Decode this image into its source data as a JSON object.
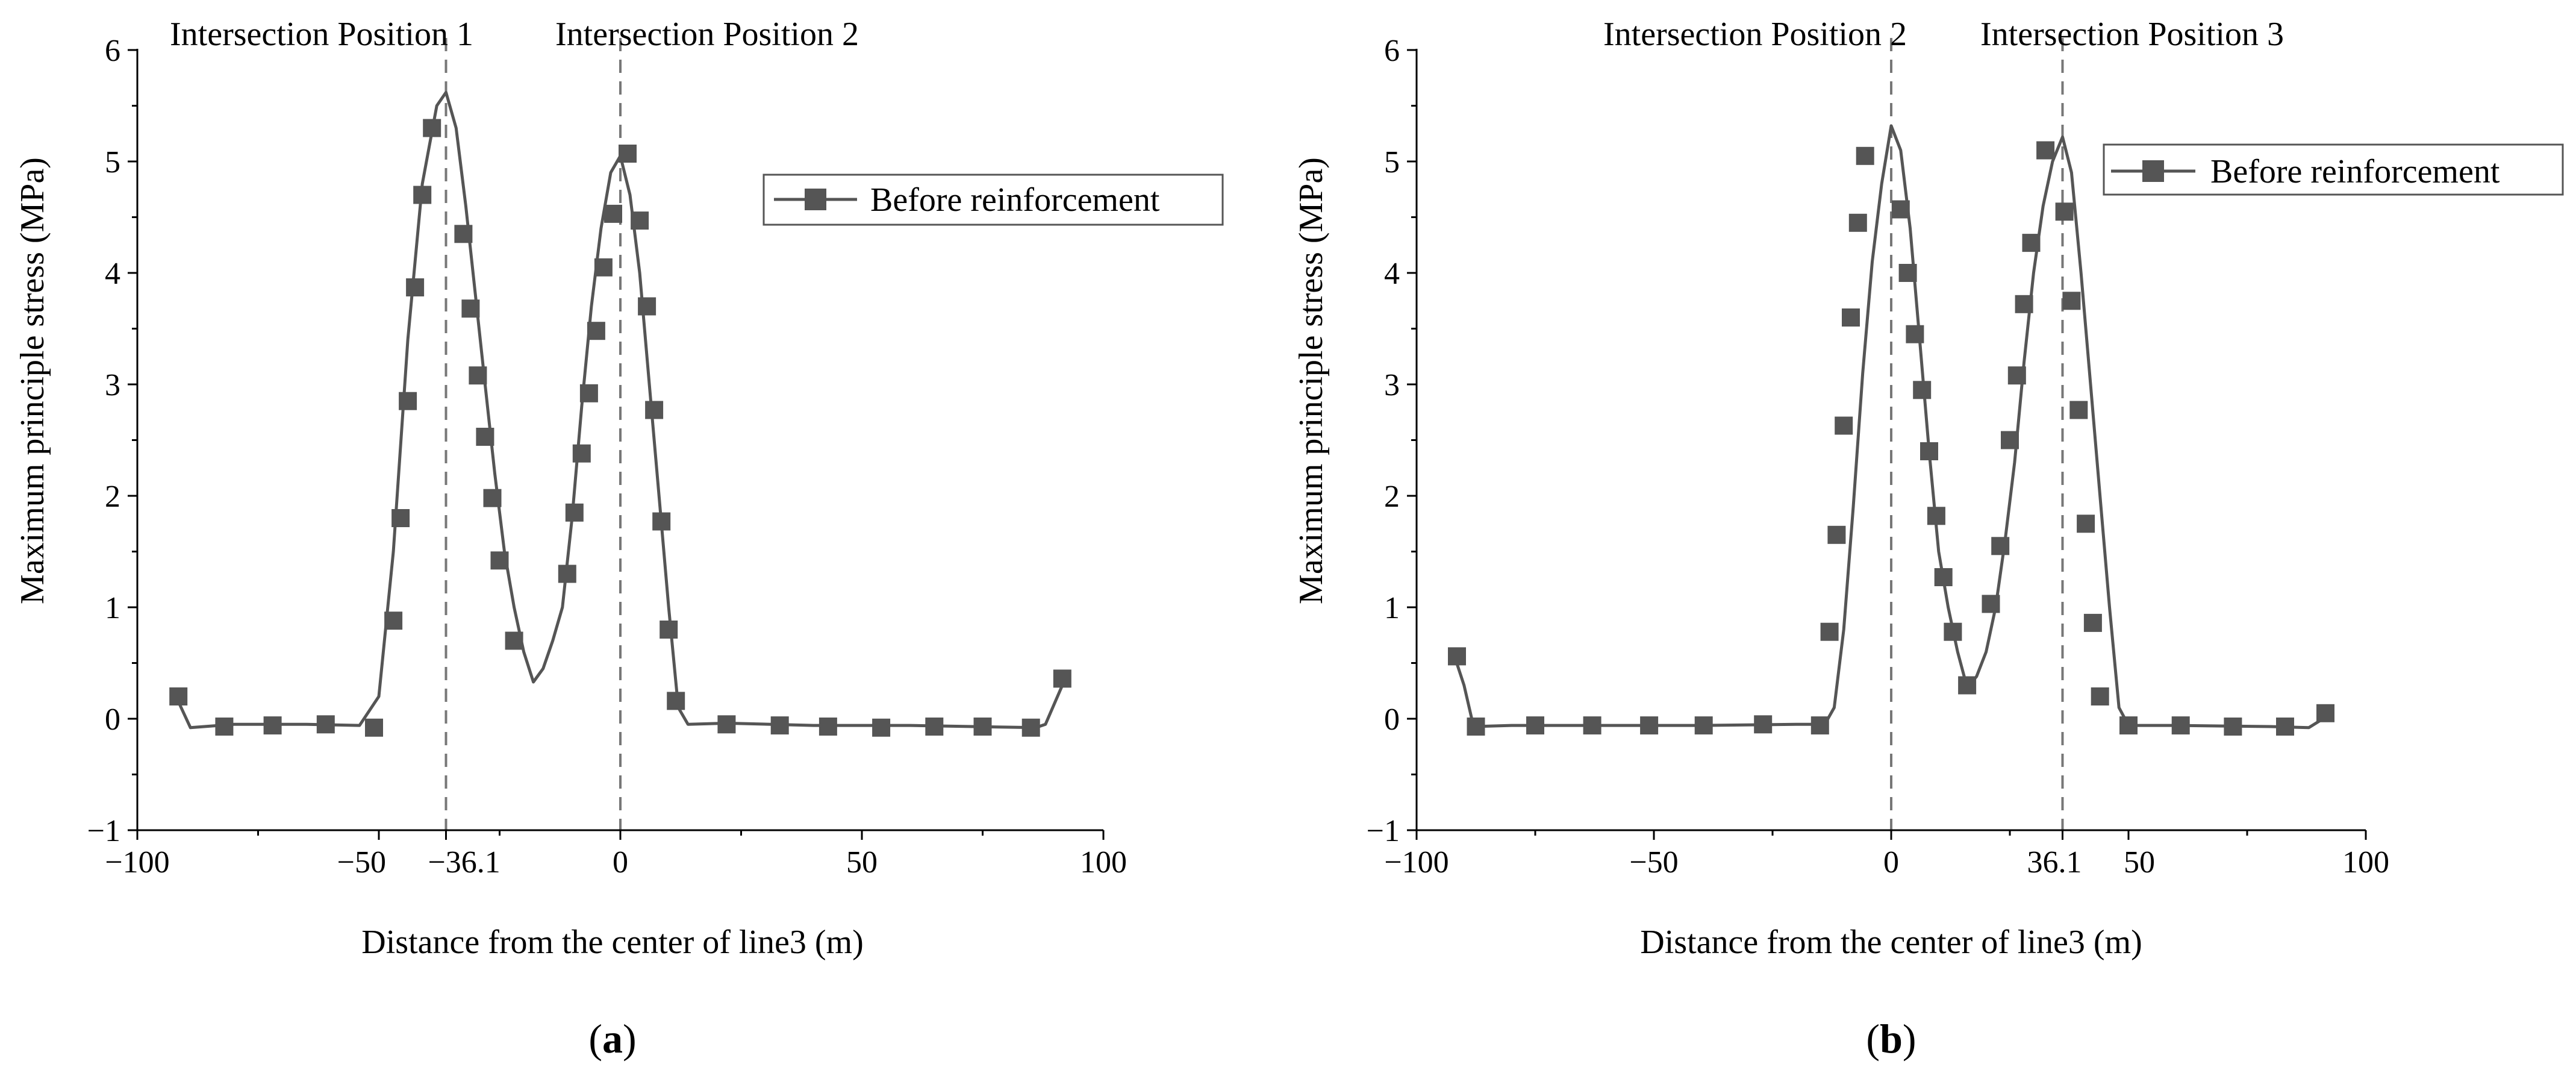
{
  "chart_data": [
    {
      "id": "a",
      "type": "line",
      "caption": "a",
      "xlabel": "Distance from the center of line3 (m)",
      "ylabel": "Maximum principle stress (MPa)",
      "xlim": [
        -100,
        100
      ],
      "ylim": [
        -1,
        6
      ],
      "xticks": [
        {
          "value": -100,
          "label": "−100"
        },
        {
          "value": -50,
          "label": "−50"
        },
        {
          "value": -36.1,
          "label": "−36.1"
        },
        {
          "value": 0,
          "label": "0"
        },
        {
          "value": 50,
          "label": "50"
        },
        {
          "value": 100,
          "label": "100"
        }
      ],
      "yticks": [
        {
          "value": -1,
          "label": "−1"
        },
        {
          "value": 0,
          "label": "0"
        },
        {
          "value": 1,
          "label": "1"
        },
        {
          "value": 2,
          "label": "2"
        },
        {
          "value": 3,
          "label": "3"
        },
        {
          "value": 4,
          "label": "4"
        },
        {
          "value": 5,
          "label": "5"
        },
        {
          "value": 6,
          "label": "6"
        }
      ],
      "vlines": [
        {
          "x": -36.1,
          "label": "Intersection Position 1"
        },
        {
          "x": 0,
          "label": "Intersection Position 2"
        }
      ],
      "legend": {
        "label": "Before reinforcement",
        "position": "top-right"
      },
      "series": [
        {
          "name": "Before reinforcement",
          "line": [
            [
              -92,
              0.2
            ],
            [
              -89,
              -0.08
            ],
            [
              -80,
              -0.05
            ],
            [
              -65,
              -0.05
            ],
            [
              -54,
              -0.06
            ],
            [
              -50,
              0.2
            ],
            [
              -47,
              1.5
            ],
            [
              -44,
              3.4
            ],
            [
              -41,
              4.8
            ],
            [
              -38,
              5.5
            ],
            [
              -36.1,
              5.62
            ],
            [
              -34,
              5.3
            ],
            [
              -32,
              4.6
            ],
            [
              -30,
              3.8
            ],
            [
              -28,
              3.0
            ],
            [
              -26,
              2.2
            ],
            [
              -24,
              1.5
            ],
            [
              -22,
              1.0
            ],
            [
              -20,
              0.6
            ],
            [
              -18,
              0.33
            ],
            [
              -16,
              0.45
            ],
            [
              -14,
              0.7
            ],
            [
              -12,
              1.0
            ],
            [
              -10,
              1.8
            ],
            [
              -8,
              2.8
            ],
            [
              -6,
              3.7
            ],
            [
              -4,
              4.4
            ],
            [
              -2,
              4.9
            ],
            [
              0,
              5.05
            ],
            [
              2,
              4.7
            ],
            [
              4,
              4.0
            ],
            [
              6,
              3.0
            ],
            [
              8,
              2.0
            ],
            [
              10,
              1.0
            ],
            [
              12,
              0.1
            ],
            [
              14,
              -0.05
            ],
            [
              22,
              -0.04
            ],
            [
              40,
              -0.06
            ],
            [
              60,
              -0.06
            ],
            [
              86,
              -0.08
            ],
            [
              88,
              -0.05
            ],
            [
              90,
              0.15
            ],
            [
              92,
              0.35
            ]
          ],
          "markers": [
            [
              -91.5,
              0.2
            ],
            [
              -82,
              -0.07
            ],
            [
              -72,
              -0.06
            ],
            [
              -61,
              -0.05
            ],
            [
              -51,
              -0.08
            ],
            [
              -47,
              0.88
            ],
            [
              -45.5,
              1.8
            ],
            [
              -44,
              2.85
            ],
            [
              -42.5,
              3.87
            ],
            [
              -41,
              4.7
            ],
            [
              -39,
              5.3
            ],
            [
              -32.5,
              4.35
            ],
            [
              -31,
              3.68
            ],
            [
              -29.5,
              3.08
            ],
            [
              -28,
              2.53
            ],
            [
              -26.5,
              1.98
            ],
            [
              -25,
              1.42
            ],
            [
              -22,
              0.7
            ],
            [
              -11,
              1.3
            ],
            [
              -9.5,
              1.85
            ],
            [
              -8,
              2.38
            ],
            [
              -6.5,
              2.92
            ],
            [
              -5,
              3.48
            ],
            [
              -3.5,
              4.05
            ],
            [
              -1.5,
              4.53
            ],
            [
              1.5,
              5.07
            ],
            [
              4,
              4.47
            ],
            [
              5.5,
              3.7
            ],
            [
              7,
              2.77
            ],
            [
              8.5,
              1.77
            ],
            [
              10,
              0.8
            ],
            [
              11.5,
              0.16
            ],
            [
              22,
              -0.05
            ],
            [
              33,
              -0.06
            ],
            [
              43,
              -0.07
            ],
            [
              54,
              -0.08
            ],
            [
              65,
              -0.07
            ],
            [
              75,
              -0.07
            ],
            [
              85,
              -0.08
            ],
            [
              91.5,
              0.36
            ]
          ]
        }
      ]
    },
    {
      "id": "b",
      "type": "line",
      "caption": "b",
      "xlabel": "Distance from the center of line3 (m)",
      "ylabel": "Maximum principle stress (MPa)",
      "xlim": [
        -100,
        100
      ],
      "ylim": [
        -1,
        6
      ],
      "xticks": [
        {
          "value": -100,
          "label": "−100"
        },
        {
          "value": -50,
          "label": "−50"
        },
        {
          "value": 0,
          "label": "0"
        },
        {
          "value": 36.1,
          "label": "36.1"
        },
        {
          "value": 50,
          "label": "50"
        },
        {
          "value": 100,
          "label": "100"
        }
      ],
      "yticks": [
        {
          "value": -1,
          "label": "−1"
        },
        {
          "value": 0,
          "label": "0"
        },
        {
          "value": 1,
          "label": "1"
        },
        {
          "value": 2,
          "label": "2"
        },
        {
          "value": 3,
          "label": "3"
        },
        {
          "value": 4,
          "label": "4"
        },
        {
          "value": 5,
          "label": "5"
        },
        {
          "value": 6,
          "label": "6"
        }
      ],
      "vlines": [
        {
          "x": 0,
          "label": "Intersection Position 2"
        },
        {
          "x": 36.1,
          "label": "Intersection Position 3"
        }
      ],
      "legend": {
        "label": "Before reinforcement",
        "position": "top-right"
      },
      "series": [
        {
          "name": "Before reinforcement",
          "line": [
            [
              -92,
              0.56
            ],
            [
              -90,
              0.3
            ],
            [
              -88,
              -0.07
            ],
            [
              -80,
              -0.06
            ],
            [
              -60,
              -0.06
            ],
            [
              -40,
              -0.06
            ],
            [
              -20,
              -0.05
            ],
            [
              -14,
              -0.05
            ],
            [
              -12,
              0.1
            ],
            [
              -10,
              0.8
            ],
            [
              -8,
              1.9
            ],
            [
              -6,
              3.1
            ],
            [
              -4,
              4.1
            ],
            [
              -2,
              4.8
            ],
            [
              0,
              5.32
            ],
            [
              2,
              5.1
            ],
            [
              4,
              4.4
            ],
            [
              6,
              3.4
            ],
            [
              8,
              2.4
            ],
            [
              10,
              1.5
            ],
            [
              12,
              1.0
            ],
            [
              14,
              0.6
            ],
            [
              16,
              0.28
            ],
            [
              18,
              0.38
            ],
            [
              20,
              0.6
            ],
            [
              22,
              1.0
            ],
            [
              24,
              1.6
            ],
            [
              26,
              2.3
            ],
            [
              28,
              3.2
            ],
            [
              30,
              4.0
            ],
            [
              32,
              4.6
            ],
            [
              34,
              5.0
            ],
            [
              36.1,
              5.22
            ],
            [
              38,
              4.9
            ],
            [
              40,
              4.0
            ],
            [
              42,
              3.0
            ],
            [
              44,
              2.0
            ],
            [
              46,
              1.0
            ],
            [
              48,
              0.1
            ],
            [
              50,
              -0.06
            ],
            [
              60,
              -0.06
            ],
            [
              80,
              -0.07
            ],
            [
              88,
              -0.08
            ],
            [
              91,
              0.0
            ],
            [
              92,
              0.05
            ]
          ],
          "markers": [
            [
              -91.5,
              0.56
            ],
            [
              -87.5,
              -0.07
            ],
            [
              -75,
              -0.06
            ],
            [
              -63,
              -0.06
            ],
            [
              -51,
              -0.06
            ],
            [
              -39.5,
              -0.06
            ],
            [
              -27,
              -0.05
            ],
            [
              -15,
              -0.06
            ],
            [
              -13,
              0.78
            ],
            [
              -11.5,
              1.65
            ],
            [
              -10,
              2.63
            ],
            [
              -8.5,
              3.6
            ],
            [
              -7,
              4.45
            ],
            [
              -5.5,
              5.05
            ],
            [
              2,
              4.57
            ],
            [
              3.5,
              4.0
            ],
            [
              5,
              3.45
            ],
            [
              6.5,
              2.95
            ],
            [
              8,
              2.4
            ],
            [
              9.5,
              1.82
            ],
            [
              11,
              1.27
            ],
            [
              13,
              0.78
            ],
            [
              16,
              0.3
            ],
            [
              21,
              1.03
            ],
            [
              23,
              1.55
            ],
            [
              25,
              2.5
            ],
            [
              26.5,
              3.08
            ],
            [
              28,
              3.72
            ],
            [
              29.5,
              4.27
            ],
            [
              32.5,
              5.1
            ],
            [
              36.5,
              4.55
            ],
            [
              38,
              3.75
            ],
            [
              39.5,
              2.77
            ],
            [
              41,
              1.75
            ],
            [
              42.5,
              0.86
            ],
            [
              44,
              0.2
            ],
            [
              50,
              -0.06
            ],
            [
              61,
              -0.06
            ],
            [
              72,
              -0.07
            ],
            [
              83,
              -0.07
            ],
            [
              91.5,
              0.05
            ]
          ]
        }
      ]
    }
  ]
}
